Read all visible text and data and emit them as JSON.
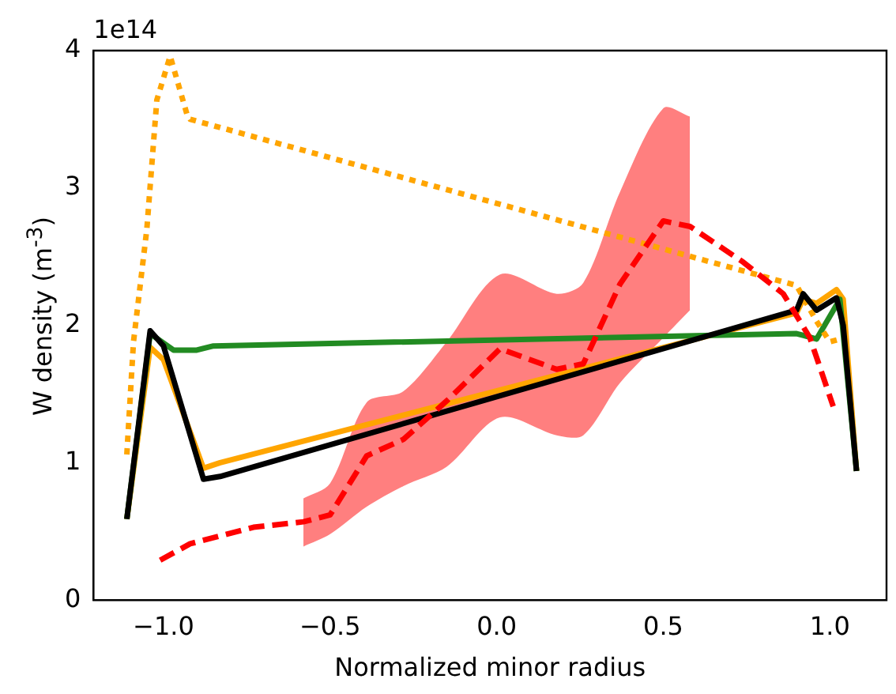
{
  "chart_data": {
    "type": "line",
    "xlabel": "Normalized minor radius",
    "ylabel": "W density (m$^{-3}$)",
    "annotations": [
      "1e14"
    ],
    "xlim": [
      -1.21,
      1.17
    ],
    "ylim": [
      0,
      4
    ],
    "xticks": [
      {
        "value": -1,
        "label": "−1.0"
      },
      {
        "value": -0.5,
        "label": "−0.5"
      },
      {
        "value": 0,
        "label": "0.0"
      },
      {
        "value": 0.5,
        "label": "0.5"
      },
      {
        "value": 1,
        "label": "1.0"
      }
    ],
    "yticks": [
      0,
      1,
      2,
      3,
      4
    ],
    "grid": false,
    "legend": false,
    "marker": "none",
    "series": [
      {
        "color": "#ff0000",
        "line_style": "dashed",
        "x": [
          -1.01,
          -0.92,
          -0.73,
          -0.58,
          -0.5,
          -0.39,
          -0.28,
          -0.15,
          0.01,
          0.18,
          0.26,
          0.37,
          0.5,
          0.58,
          0.74,
          0.86,
          0.94,
          1.01
        ],
        "values": [
          0.29,
          0.41,
          0.53,
          0.57,
          0.62,
          1.05,
          1.17,
          1.45,
          1.83,
          1.68,
          1.72,
          2.3,
          2.76,
          2.72,
          2.46,
          2.23,
          1.91,
          1.41
        ],
        "lower": [
          null,
          null,
          null,
          0.39,
          0.48,
          0.68,
          0.83,
          0.97,
          1.33,
          1.2,
          1.2,
          1.58,
          1.91,
          2.11,
          null,
          null,
          null,
          null
        ],
        "upper": [
          null,
          null,
          null,
          0.74,
          0.85,
          1.44,
          1.52,
          1.88,
          2.37,
          2.23,
          2.31,
          2.97,
          3.58,
          3.52,
          null,
          null,
          null,
          null
        ]
      },
      {
        "color": "#000000",
        "line_style": "solid",
        "x": [
          -1.11,
          -1.04,
          -1.0,
          -0.88,
          -0.83,
          0.9,
          0.92,
          0.96,
          1.02,
          1.04,
          1.08
        ],
        "values": [
          0.59,
          1.96,
          1.85,
          0.88,
          0.9,
          2.11,
          2.23,
          2.11,
          2.2,
          2.0,
          0.94
        ]
      },
      {
        "color": "#ffa500",
        "line_style": "dotted",
        "x": [
          -1.11,
          -1.09,
          -1.05,
          -1.02,
          -0.98,
          -0.93,
          -0.92,
          0.9,
          0.96,
          1.0,
          1.03
        ],
        "values": [
          1.06,
          1.88,
          2.7,
          3.64,
          3.96,
          3.54,
          3.5,
          2.29,
          2.03,
          1.88,
          1.9
        ]
      },
      {
        "color": "#228b22",
        "line_style": "solid",
        "x": [
          -1.11,
          -1.04,
          -0.97,
          -0.9,
          -0.85,
          0.9,
          0.96,
          1.03,
          1.08
        ],
        "values": [
          0.59,
          1.94,
          1.82,
          1.82,
          1.85,
          1.94,
          1.9,
          2.19,
          0.94
        ]
      },
      {
        "color": "#ffa500",
        "line_style": "solid",
        "x": [
          -1.11,
          -1.04,
          -1.0,
          -0.88,
          -0.83,
          0.9,
          0.92,
          0.96,
          1.02,
          1.04,
          1.08
        ],
        "values": [
          0.59,
          1.84,
          1.75,
          0.96,
          1.0,
          2.09,
          2.19,
          2.16,
          2.26,
          2.19,
          0.94
        ]
      }
    ]
  }
}
